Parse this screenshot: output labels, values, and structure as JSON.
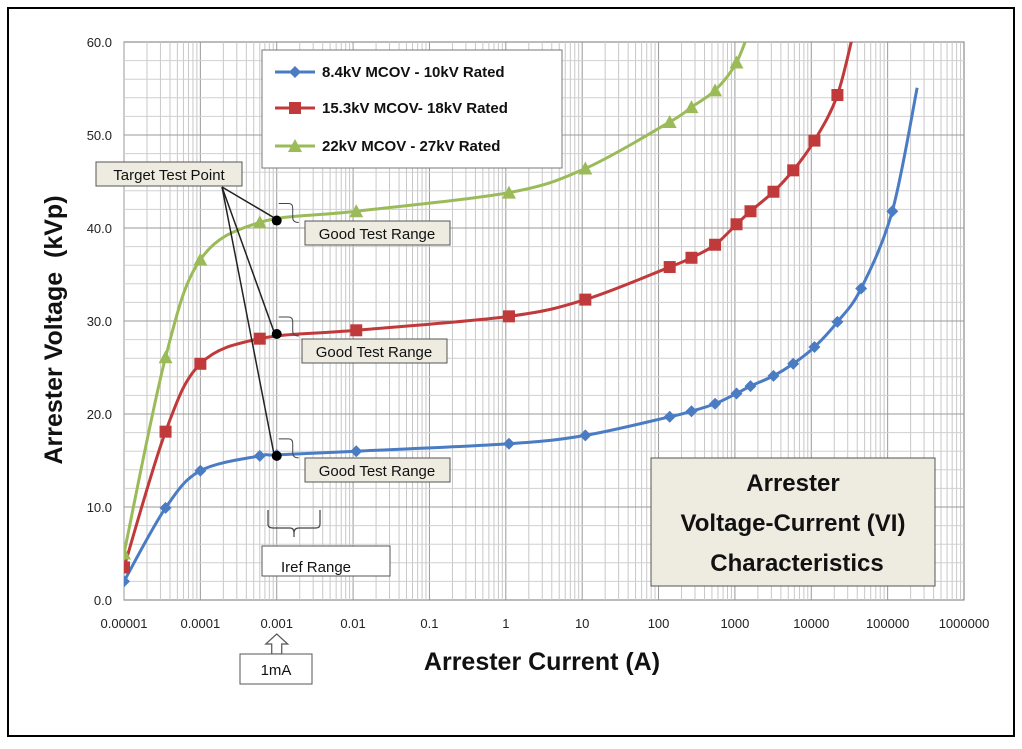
{
  "chart_data": {
    "type": "line",
    "title": "Arrester Voltage-Current (VI) Characteristics",
    "title_lines": [
      "Arrester",
      "Voltage-Current (VI)",
      "Characteristics"
    ],
    "xlabel": "Arrester Current (A)",
    "ylabel": "Arrester Voltage  (kVp)",
    "x_scale": "log",
    "xlim": [
      1e-05,
      1000000
    ],
    "ylim": [
      0,
      60
    ],
    "x_ticks": [
      1e-05,
      0.0001,
      0.001,
      0.01,
      0.1,
      1,
      10,
      100,
      1000,
      10000,
      100000,
      1000000
    ],
    "x_tick_labels": [
      "0.00001",
      "0.0001",
      "0.001",
      "0.01",
      "0.1",
      "1",
      "10",
      "100",
      "1000",
      "10000",
      "100000",
      "1000000"
    ],
    "y_ticks": [
      0,
      10,
      20,
      30,
      40,
      50,
      60
    ],
    "y_tick_labels": [
      "0.0",
      "10.0",
      "20.0",
      "30.0",
      "40.0",
      "50.0",
      "60.0"
    ],
    "grid": true,
    "legend_position": "top-left",
    "series": [
      {
        "name": "8.4kV MCOV - 10kV Rated",
        "color": "#4a7cc4",
        "marker": "diamond",
        "x": [
          1e-05,
          3.5e-05,
          0.0001,
          0.0006,
          0.001,
          0.011,
          1.1,
          11,
          140,
          270,
          550,
          1050,
          1600,
          3200,
          5800,
          11000,
          22000,
          45000,
          115000
        ],
        "y": [
          2.0,
          9.9,
          13.9,
          15.5,
          15.6,
          16.0,
          16.8,
          17.7,
          19.7,
          20.3,
          21.1,
          22.2,
          23.0,
          24.1,
          25.4,
          27.2,
          29.9,
          33.5,
          41.8
        ]
      },
      {
        "name": "15.3kV MCOV- 18kV Rated",
        "color": "#c0393b",
        "marker": "square",
        "x": [
          1e-05,
          3.5e-05,
          0.0001,
          0.0006,
          0.011,
          1.1,
          11,
          140,
          270,
          550,
          1050,
          1600,
          3200,
          5800,
          11000,
          22000
        ],
        "y": [
          3.5,
          18.1,
          25.4,
          28.1,
          29.0,
          30.5,
          32.3,
          35.8,
          36.8,
          38.2,
          40.4,
          41.8,
          43.9,
          46.2,
          49.4,
          54.3
        ]
      },
      {
        "name": "22kV MCOV - 27kV Rated",
        "color": "#9bbb59",
        "marker": "triangle",
        "x": [
          1e-05,
          3.5e-05,
          0.0001,
          0.0006,
          0.011,
          1.1,
          11,
          140,
          270,
          550,
          1050
        ],
        "y": [
          5.0,
          26.1,
          36.6,
          40.6,
          41.8,
          43.8,
          46.4,
          51.4,
          53.0,
          54.8,
          57.8
        ]
      }
    ],
    "annotations": {
      "target_label": "Target Test Point",
      "good_range_label": "Good Test Range",
      "iref_label": "Iref Range",
      "ma_label": "1mA",
      "target_points": [
        [
          0.001,
          40.8
        ],
        [
          0.001,
          28.6
        ],
        [
          0.001,
          15.5
        ]
      ]
    }
  }
}
